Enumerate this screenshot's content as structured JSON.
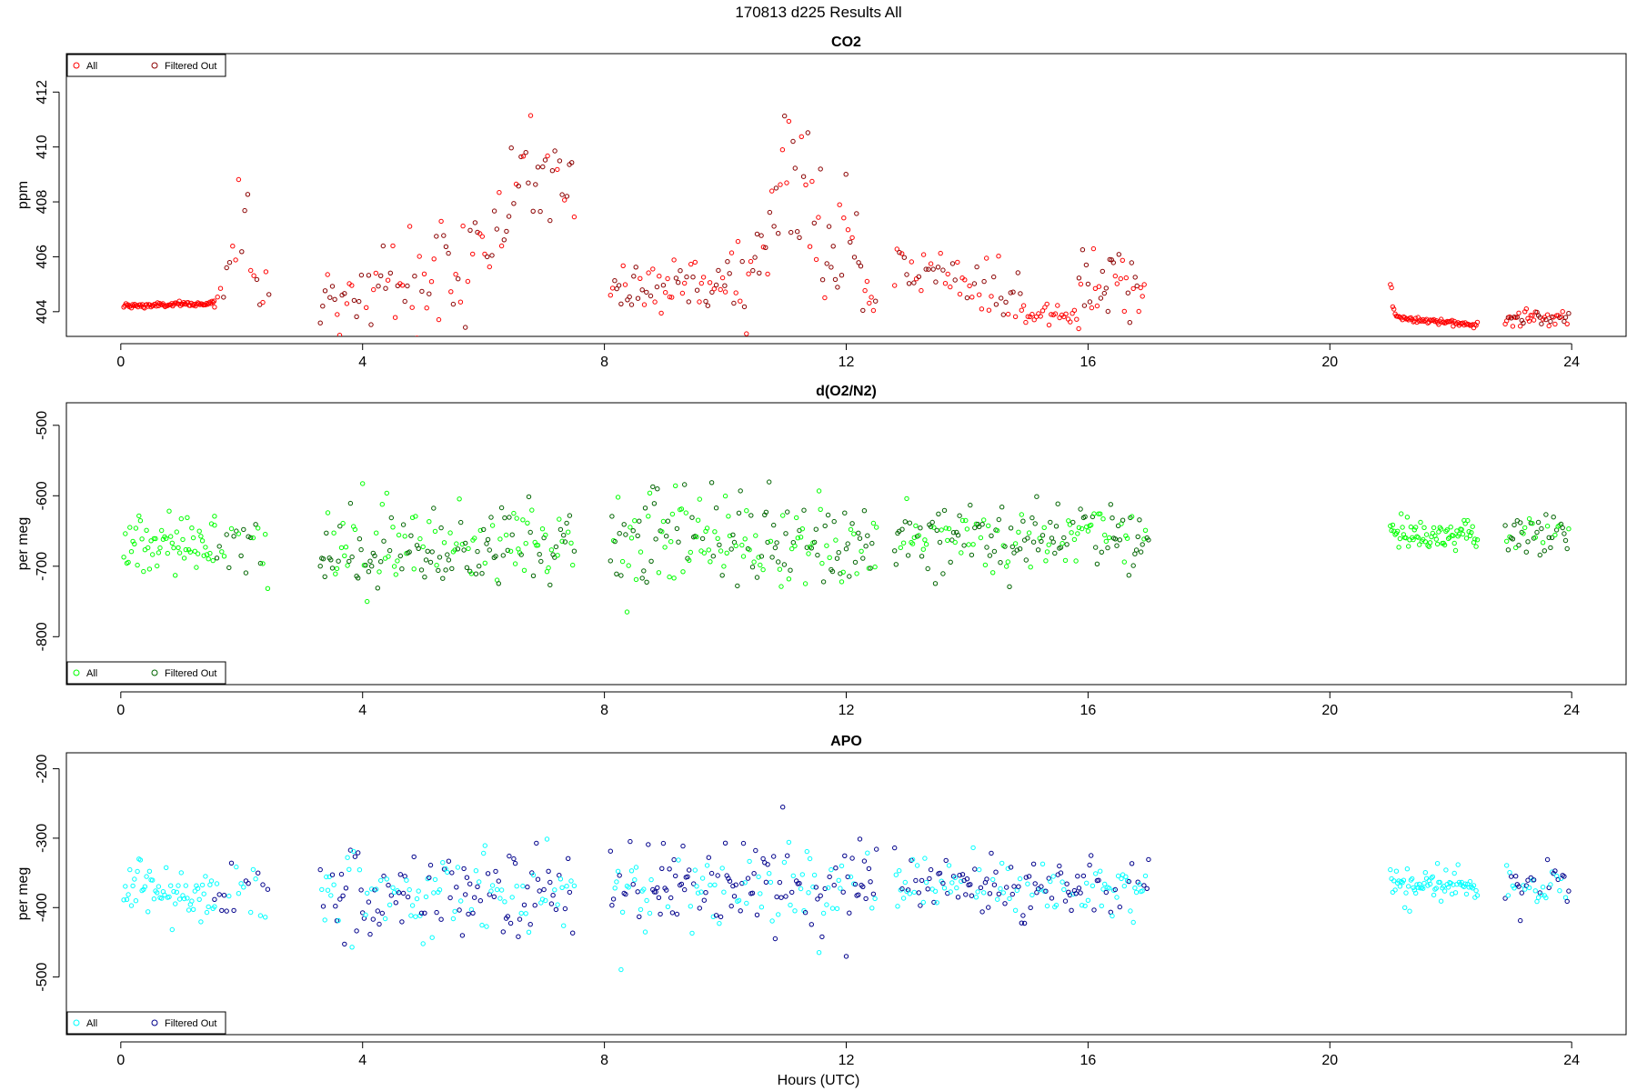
{
  "figure": {
    "title": "170813   d225   Results All",
    "xlabel": "Hours (UTC)"
  },
  "chart_data": [
    {
      "type": "scatter",
      "title": "CO2",
      "xlabel": "",
      "ylabel": "ppm",
      "xlim": [
        -0.9,
        24.9
      ],
      "ylim": [
        403.1,
        413.4
      ],
      "xticks": [
        0,
        4,
        8,
        12,
        16,
        20,
        24
      ],
      "yticks": [
        404,
        406,
        408,
        410,
        412
      ],
      "grid": false,
      "legend_position": "top-left",
      "legend": [
        {
          "label": "All",
          "color": "#ff0000"
        },
        {
          "label": "Filtered Out",
          "color": "#8b0000"
        }
      ],
      "segments": [
        {
          "start": 0.05,
          "end": 1.55,
          "step": 0.018,
          "base": 404.2,
          "trend": 0.1,
          "noise": 0.05,
          "spikes": [],
          "series": "All"
        },
        {
          "start": 1.55,
          "end": 2.45,
          "step": 0.05,
          "base": 404.5,
          "trend": 0.0,
          "noise": 0.4,
          "spikes": [
            {
              "x": 2.0,
              "amp": 4.5,
              "w": 0.18
            }
          ],
          "series": "mixed"
        },
        {
          "start": 3.3,
          "end": 7.5,
          "step": 0.04,
          "base": 404.3,
          "trend": 3.0,
          "noise": 1.0,
          "spikes": [
            {
              "x": 6.8,
              "amp": 3.5,
              "w": 0.5
            }
          ],
          "series": "mixed"
        },
        {
          "start": 8.1,
          "end": 10.0,
          "step": 0.035,
          "base": 404.7,
          "trend": 0.3,
          "noise": 0.4,
          "spikes": [],
          "series": "mixed"
        },
        {
          "start": 10.0,
          "end": 12.5,
          "step": 0.035,
          "base": 405.0,
          "trend": 0.0,
          "noise": 1.0,
          "spikes": [
            {
              "x": 11.1,
              "amp": 5.5,
              "w": 0.5
            },
            {
              "x": 12.0,
              "amp": 3.0,
              "w": 0.15
            }
          ],
          "series": "mixed"
        },
        {
          "start": 12.8,
          "end": 14.9,
          "step": 0.04,
          "base": 405.8,
          "trend": -1.2,
          "noise": 0.6,
          "spikes": [],
          "series": "mixed"
        },
        {
          "start": 14.9,
          "end": 15.85,
          "step": 0.035,
          "base": 403.9,
          "trend": 0.0,
          "noise": 0.2,
          "spikes": [],
          "series": "All"
        },
        {
          "start": 15.85,
          "end": 16.95,
          "step": 0.03,
          "base": 405.0,
          "trend": 0.0,
          "noise": 0.6,
          "spikes": [],
          "series": "mixed"
        },
        {
          "start": 21.0,
          "end": 22.45,
          "step": 0.02,
          "base": 403.8,
          "trend": -0.3,
          "noise": 0.05,
          "spikes": [
            {
              "x": 21.0,
              "amp": 1.4,
              "w": 0.05
            }
          ],
          "series": "All"
        },
        {
          "start": 22.9,
          "end": 23.95,
          "step": 0.025,
          "base": 403.8,
          "trend": 0.0,
          "noise": 0.15,
          "spikes": [],
          "series": "mixed"
        }
      ]
    },
    {
      "type": "scatter",
      "title": "d(O2/N2)",
      "xlabel": "",
      "ylabel": "per meg",
      "xlim": [
        -0.9,
        24.9
      ],
      "ylim": [
        -868,
        -468
      ],
      "xticks": [
        0,
        4,
        8,
        12,
        16,
        20,
        24
      ],
      "yticks": [
        -800,
        -700,
        -600,
        -500
      ],
      "grid": false,
      "legend_position": "bottom-left",
      "legend": [
        {
          "label": "All",
          "color": "#00ff00"
        },
        {
          "label": "Filtered Out",
          "color": "#006400"
        }
      ],
      "segments": [
        {
          "start": 0.05,
          "end": 1.55,
          "step": 0.025,
          "base": -668,
          "trend": 0,
          "noise": 20,
          "spikes": [],
          "series": "All"
        },
        {
          "start": 1.55,
          "end": 2.45,
          "step": 0.04,
          "base": -672,
          "trend": 0,
          "noise": 25,
          "spikes": [],
          "series": "mixed"
        },
        {
          "start": 3.3,
          "end": 7.5,
          "step": 0.025,
          "base": -672,
          "trend": 0,
          "noise": 30,
          "spikes": [],
          "series": "mixed"
        },
        {
          "start": 8.1,
          "end": 12.5,
          "step": 0.025,
          "base": -660,
          "trend": 0,
          "noise": 35,
          "spikes": [],
          "series": "mixed"
        },
        {
          "start": 12.8,
          "end": 17.0,
          "step": 0.025,
          "base": -655,
          "trend": 0,
          "noise": 25,
          "spikes": [],
          "series": "mixed"
        },
        {
          "start": 21.0,
          "end": 22.45,
          "step": 0.02,
          "base": -655,
          "trend": 0,
          "noise": 12,
          "spikes": [],
          "series": "All"
        },
        {
          "start": 22.9,
          "end": 23.95,
          "step": 0.025,
          "base": -655,
          "trend": 0,
          "noise": 18,
          "spikes": [],
          "series": "mixed"
        }
      ]
    },
    {
      "type": "scatter",
      "title": "APO",
      "xlabel": "Hours (UTC)",
      "ylabel": "per meg",
      "xlim": [
        -0.9,
        24.9
      ],
      "ylim": [
        -583,
        -177
      ],
      "xticks": [
        0,
        4,
        8,
        12,
        16,
        20,
        24
      ],
      "yticks": [
        -500,
        -400,
        -300,
        -200
      ],
      "grid": false,
      "legend_position": "bottom-left",
      "legend": [
        {
          "label": "All",
          "color": "#00ffff"
        },
        {
          "label": "Filtered Out",
          "color": "#00008b"
        }
      ],
      "segments": [
        {
          "start": 0.05,
          "end": 1.55,
          "step": 0.025,
          "base": -378,
          "trend": 0,
          "noise": 20,
          "spikes": [],
          "series": "All"
        },
        {
          "start": 1.55,
          "end": 2.45,
          "step": 0.04,
          "base": -380,
          "trend": 0,
          "noise": 25,
          "spikes": [],
          "series": "mixed"
        },
        {
          "start": 3.3,
          "end": 7.5,
          "step": 0.025,
          "base": -378,
          "trend": 0,
          "noise": 30,
          "spikes": [],
          "series": "mixed"
        },
        {
          "start": 8.1,
          "end": 12.5,
          "step": 0.025,
          "base": -368,
          "trend": 0,
          "noise": 35,
          "spikes": [],
          "series": "mixed"
        },
        {
          "start": 12.8,
          "end": 17.0,
          "step": 0.025,
          "base": -368,
          "trend": 0,
          "noise": 22,
          "spikes": [],
          "series": "mixed"
        },
        {
          "start": 21.0,
          "end": 22.45,
          "step": 0.02,
          "base": -370,
          "trend": 0,
          "noise": 12,
          "spikes": [],
          "series": "All"
        },
        {
          "start": 22.9,
          "end": 23.95,
          "step": 0.025,
          "base": -368,
          "trend": 0,
          "noise": 18,
          "spikes": [],
          "series": "mixed"
        }
      ]
    }
  ]
}
